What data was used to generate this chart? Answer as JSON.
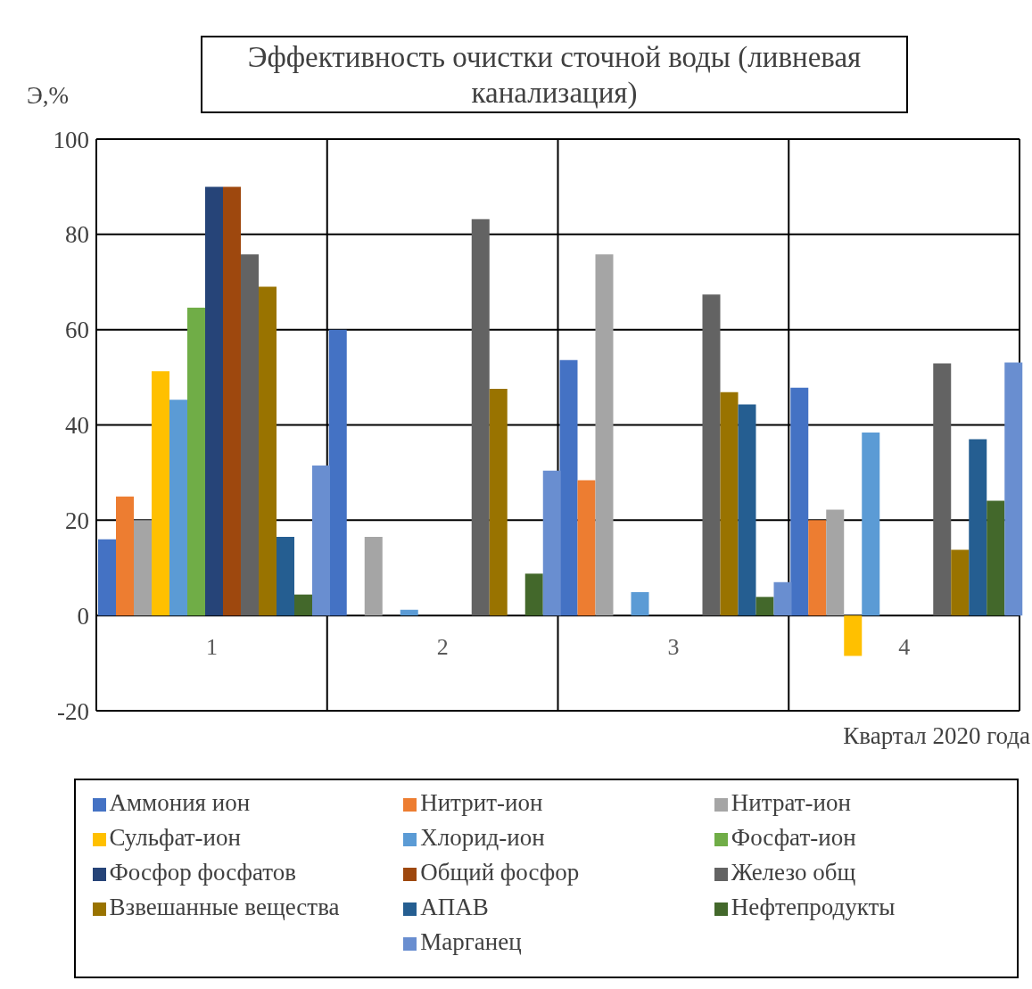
{
  "chart_data": {
    "type": "bar",
    "title": "Эффективность очистки сточной воды (ливневая канализация)",
    "ylabel": "Э,%",
    "xlabel": "Квартал 2020 года",
    "categories": [
      "1",
      "2",
      "3",
      "4"
    ],
    "ylim": [
      -20,
      100
    ],
    "yticks": [
      -20,
      0,
      20,
      40,
      60,
      80,
      100
    ],
    "grid": true,
    "legend": "bottom",
    "series": [
      {
        "name": "Аммония ион",
        "color": "#4472c4",
        "values": [
          16,
          60,
          53.6,
          47.8
        ]
      },
      {
        "name": "Нитрит-ион",
        "color": "#ed7d31",
        "values": [
          25,
          0,
          28.4,
          20
        ]
      },
      {
        "name": "Нитрат-ион",
        "color": "#a5a5a5",
        "values": [
          20,
          16.5,
          75.8,
          22.2
        ]
      },
      {
        "name": "Сульфат-ион",
        "color": "#ffc000",
        "values": [
          51.3,
          0,
          0,
          -8.5
        ]
      },
      {
        "name": "Хлорид-ион",
        "color": "#5b9bd5",
        "values": [
          45.3,
          1.2,
          4.9,
          38.4
        ]
      },
      {
        "name": "Фосфат-ион",
        "color": "#70ad47",
        "values": [
          64.6,
          0,
          0,
          0
        ]
      },
      {
        "name": "Фосфор фосфатов",
        "color": "#264478",
        "values": [
          90,
          0,
          0,
          0
        ]
      },
      {
        "name": "Общий фосфор",
        "color": "#9e480e",
        "values": [
          90,
          0,
          0,
          0
        ]
      },
      {
        "name": "Железо общ",
        "color": "#636363",
        "values": [
          75.8,
          83.2,
          67.4,
          52.9
        ]
      },
      {
        "name": "Взвешанные вещества",
        "color": "#997300",
        "values": [
          69,
          47.6,
          46.9,
          13.8
        ]
      },
      {
        "name": "АПАВ",
        "color": "#255e91",
        "values": [
          16.5,
          0,
          44.3,
          37
        ]
      },
      {
        "name": "Нефтепродукты",
        "color": "#43682b",
        "values": [
          4.4,
          8.8,
          3.9,
          24.1
        ]
      },
      {
        "name": "Марганец",
        "color": "#698ed0",
        "values": [
          31.5,
          30.4,
          7,
          53.1
        ]
      }
    ]
  }
}
